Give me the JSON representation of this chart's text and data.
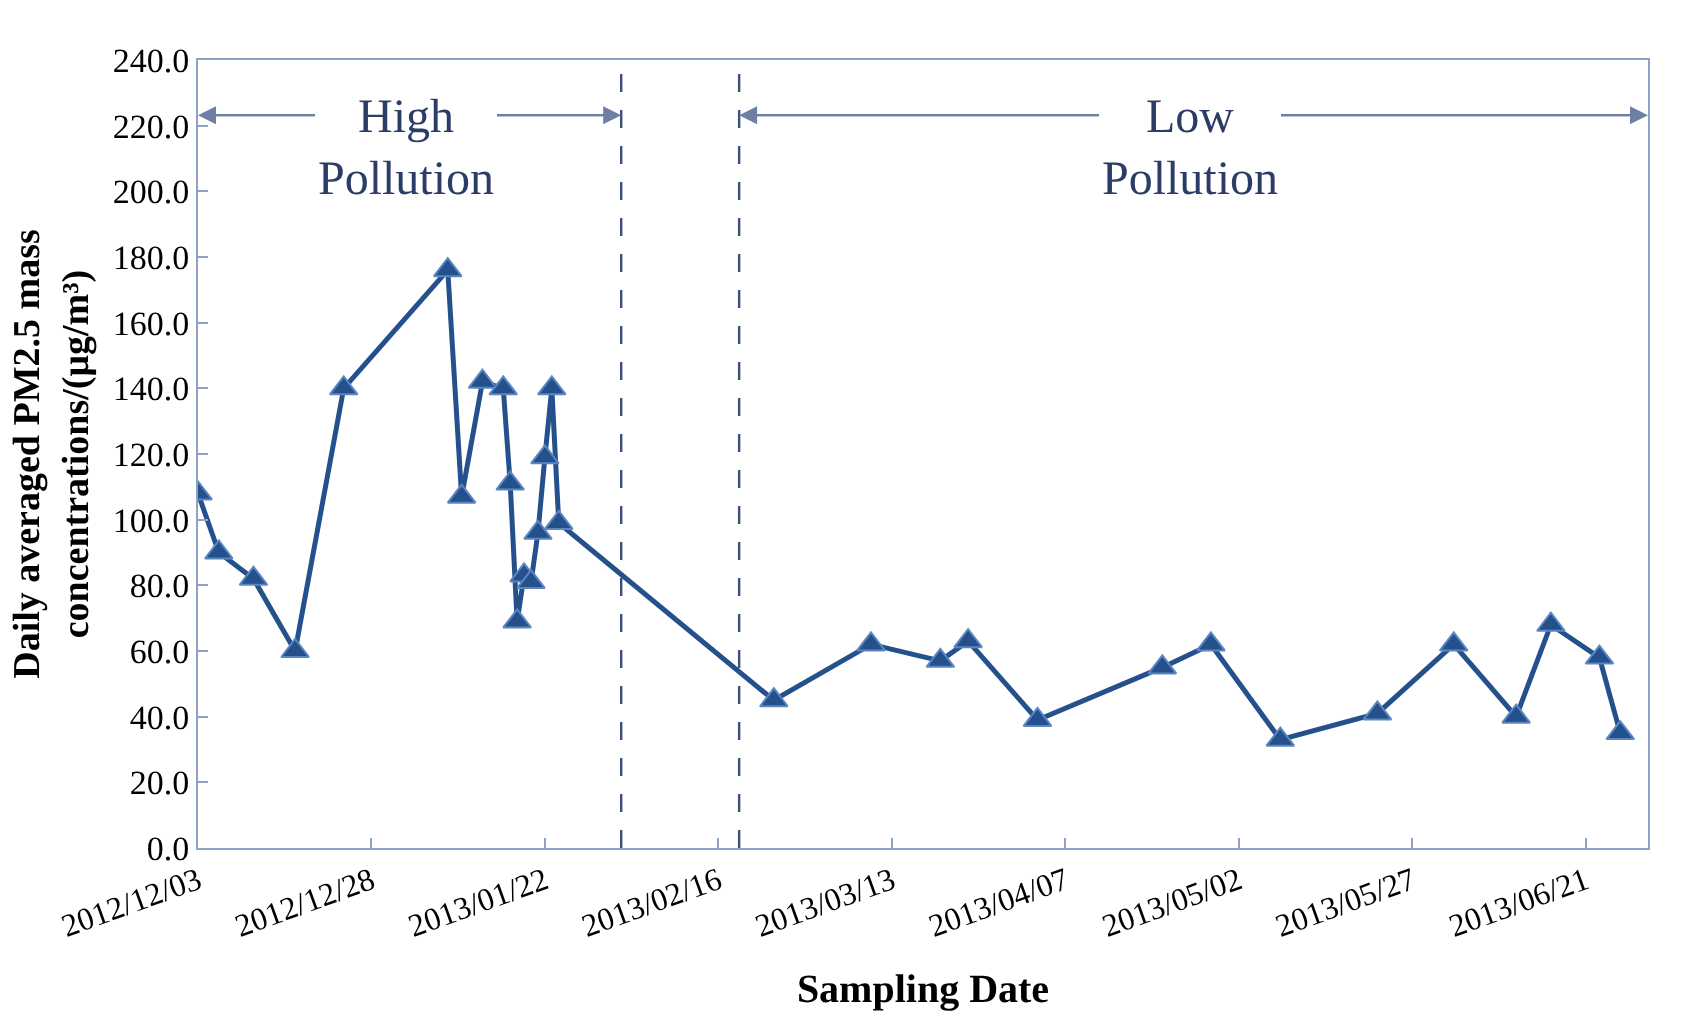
{
  "chart_data": {
    "type": "line",
    "xlabel": "Sampling Date",
    "ylabel": "Daily averaged PM2.5 mass\nconcentrations/(μg/m³)",
    "x": [
      "2012-12-03",
      "2012-12-06",
      "2012-12-11",
      "2012-12-17",
      "2012-12-24",
      "2013-01-08",
      "2013-01-10",
      "2013-01-13",
      "2013-01-16",
      "2013-01-17",
      "2013-01-18",
      "2013-01-19",
      "2013-01-20",
      "2013-01-21",
      "2013-01-22",
      "2013-01-23",
      "2013-01-24",
      "2013-02-24",
      "2013-03-10",
      "2013-03-20",
      "2013-03-24",
      "2013-04-03",
      "2013-04-21",
      "2013-04-28",
      "2013-05-08",
      "2013-05-22",
      "2013-06-02",
      "2013-06-11",
      "2013-06-16",
      "2013-06-23",
      "2013-06-26"
    ],
    "series": [
      {
        "color": "#24508c",
        "values": [
          108,
          90,
          82,
          60,
          140,
          176,
          107,
          142,
          140,
          111,
          69,
          83,
          81,
          96,
          119,
          140,
          99,
          45,
          62,
          57,
          63,
          39,
          55,
          62,
          33,
          41,
          62,
          40,
          68,
          58,
          35
        ]
      }
    ],
    "marker": "triangle",
    "line_style": "solid",
    "legend": false,
    "xlim": [
      "2012-12-03",
      "2013-06-30"
    ],
    "xticks": [
      {
        "value": "2012-12-03",
        "label": "2012/12/03"
      },
      {
        "value": "2012-12-28",
        "label": "2012/12/28"
      },
      {
        "value": "2013-01-22",
        "label": "2013/01/22"
      },
      {
        "value": "2013-02-16",
        "label": "2013/02/16"
      },
      {
        "value": "2013-03-13",
        "label": "2013/03/13"
      },
      {
        "value": "2013-04-07",
        "label": "2013/04/07"
      },
      {
        "value": "2013-05-02",
        "label": "2013/05/02"
      },
      {
        "value": "2013-05-27",
        "label": "2013/05/27"
      },
      {
        "value": "2013-06-21",
        "label": "2013/06/21"
      }
    ],
    "ylim": [
      0,
      240
    ],
    "yticks": [
      {
        "value": 0,
        "label": "0.0"
      },
      {
        "value": 20,
        "label": "20.0"
      },
      {
        "value": 40,
        "label": "40.0"
      },
      {
        "value": 60,
        "label": "60.0"
      },
      {
        "value": 80,
        "label": "80.0"
      },
      {
        "value": 100,
        "label": "100.0"
      },
      {
        "value": 120,
        "label": "120.0"
      },
      {
        "value": 140,
        "label": "140.0"
      },
      {
        "value": 160,
        "label": "160.0"
      },
      {
        "value": 180,
        "label": "180.0"
      },
      {
        "value": 200,
        "label": "200.0"
      },
      {
        "value": 220,
        "label": "220.0"
      },
      {
        "value": 240,
        "label": "240.0"
      }
    ],
    "ref_lines": [
      {
        "axis": "x",
        "value": "2013-02-02",
        "color": "#3a4f7a",
        "line_style": "dashed"
      },
      {
        "axis": "x",
        "value": "2013-02-19",
        "color": "#3a4f7a",
        "line_style": "dashed"
      }
    ],
    "annotations": [
      "High\nPollution",
      "Low\nPollution"
    ]
  }
}
